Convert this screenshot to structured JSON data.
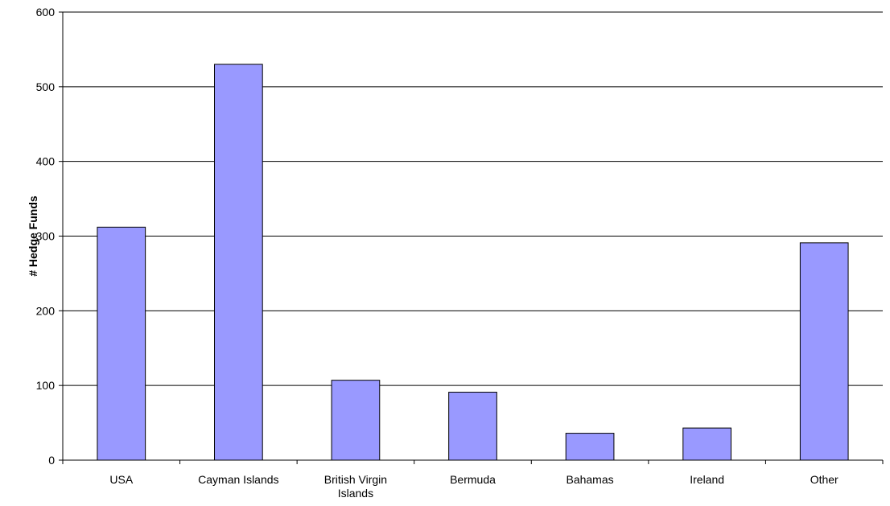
{
  "chart_data": {
    "type": "bar",
    "title": "",
    "xlabel": "",
    "ylabel": "# Hedge Funds",
    "categories": [
      [
        "USA"
      ],
      [
        "Cayman Islands"
      ],
      [
        "British Virgin",
        "Islands"
      ],
      [
        "Bermuda"
      ],
      [
        "Bahamas"
      ],
      [
        "Ireland"
      ],
      [
        "Other"
      ]
    ],
    "values": [
      312,
      530,
      107,
      91,
      36,
      43,
      291
    ],
    "ylim": [
      0,
      600
    ],
    "yticks": [
      "0",
      "100",
      "200",
      "300",
      "400",
      "500",
      "600"
    ],
    "grid": true,
    "legend": "none",
    "colors": {
      "bar_fill": "#9999ff",
      "bar_stroke": "#000000",
      "grid": "#000000",
      "axis": "#000000"
    }
  }
}
